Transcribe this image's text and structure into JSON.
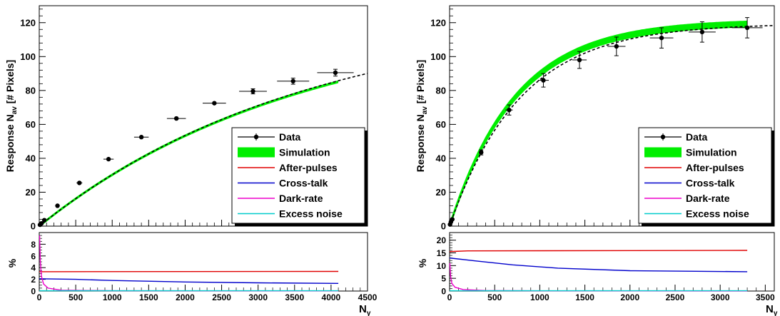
{
  "chart_data": [
    {
      "type": "line",
      "ylabel": "Response N_av [# Pixels]",
      "xlabel": "N_γ",
      "xlim": [
        0,
        4500
      ],
      "ylim": [
        0,
        130
      ],
      "x_ticks": [
        0,
        500,
        1000,
        1500,
        2000,
        2500,
        3000,
        3500,
        4000,
        4500
      ],
      "y_ticks": [
        0,
        20,
        40,
        60,
        80,
        100,
        120
      ],
      "legend_position": "bottom-right",
      "legend": [
        "Data",
        "Simulation",
        "After-pulses",
        "Cross-talk",
        "Dark-rate",
        "Excess noise"
      ],
      "data_points": [
        {
          "x": 10,
          "y": 0.8,
          "xerr": 5,
          "yerr": 0.3
        },
        {
          "x": 30,
          "y": 1.6,
          "xerr": 8,
          "yerr": 0.4
        },
        {
          "x": 70,
          "y": 3.5,
          "xerr": 12,
          "yerr": 0.5
        },
        {
          "x": 250,
          "y": 12,
          "xerr": 25,
          "yerr": 0.6
        },
        {
          "x": 550,
          "y": 25.5,
          "xerr": 40,
          "yerr": 0.8
        },
        {
          "x": 950,
          "y": 39.5,
          "xerr": 70,
          "yerr": 1.0
        },
        {
          "x": 1400,
          "y": 52.5,
          "xerr": 100,
          "yerr": 1.0
        },
        {
          "x": 1880,
          "y": 63.5,
          "xerr": 130,
          "yerr": 1.0
        },
        {
          "x": 2400,
          "y": 72.5,
          "xerr": 160,
          "yerr": 1.2
        },
        {
          "x": 2930,
          "y": 79.5,
          "xerr": 190,
          "yerr": 1.5
        },
        {
          "x": 3480,
          "y": 85.5,
          "xerr": 220,
          "yerr": 1.8
        },
        {
          "x": 4060,
          "y": 90.5,
          "xerr": 250,
          "yerr": 2.0
        }
      ],
      "fit_curve": {
        "Nmax": 128,
        "tau": 3700,
        "x_end": 4500
      },
      "simulation_band": {
        "Nmax": 126,
        "tau": 3640,
        "x_end": 4100,
        "half_width": 0.8
      },
      "residual_panel": {
        "ylabel": "%",
        "ylim": [
          0,
          10
        ],
        "y_ticks": [
          0,
          2,
          4,
          6,
          8
        ],
        "after_pulses": [
          [
            0,
            3.3
          ],
          [
            4100,
            3.35
          ]
        ],
        "cross_talk": [
          [
            0,
            2.1
          ],
          [
            500,
            2.0
          ],
          [
            1000,
            1.8
          ],
          [
            2000,
            1.55
          ],
          [
            3000,
            1.4
          ],
          [
            4100,
            1.3
          ]
        ],
        "dark_rate": [
          [
            5,
            9.5
          ],
          [
            15,
            5.0
          ],
          [
            30,
            2.5
          ],
          [
            60,
            1.2
          ],
          [
            120,
            0.5
          ],
          [
            300,
            0.15
          ],
          [
            1000,
            0.05
          ],
          [
            4100,
            0.02
          ]
        ],
        "excess_noise": [
          [
            0,
            0.05
          ],
          [
            4100,
            0.05
          ]
        ]
      }
    },
    {
      "type": "line",
      "ylabel": "Response N_av [# Pixels]",
      "xlabel": "N_γ",
      "xlim": [
        0,
        3600
      ],
      "ylim": [
        0,
        130
      ],
      "x_ticks": [
        0,
        500,
        1000,
        1500,
        2000,
        2500,
        3000,
        3500
      ],
      "y_ticks": [
        0,
        20,
        40,
        60,
        80,
        100,
        120
      ],
      "legend_position": "bottom-right",
      "legend": [
        "Data",
        "Simulation",
        "After-pulses",
        "Cross-talk",
        "Dark-rate",
        "Excess noise"
      ],
      "data_points": [
        {
          "x": 5,
          "y": 1.0,
          "xerr": 5,
          "yerr": 0.5
        },
        {
          "x": 15,
          "y": 2.5,
          "xerr": 6,
          "yerr": 0.6
        },
        {
          "x": 30,
          "y": 4.0,
          "xerr": 8,
          "yerr": 0.8
        },
        {
          "x": 350,
          "y": 43.5,
          "xerr": 20,
          "yerr": 1.5
        },
        {
          "x": 660,
          "y": 68.5,
          "xerr": 40,
          "yerr": 3.0
        },
        {
          "x": 1040,
          "y": 86,
          "xerr": 60,
          "yerr": 4.0
        },
        {
          "x": 1440,
          "y": 98,
          "xerr": 80,
          "yerr": 5.0
        },
        {
          "x": 1850,
          "y": 106,
          "xerr": 100,
          "yerr": 5.5
        },
        {
          "x": 2350,
          "y": 111,
          "xerr": 130,
          "yerr": 6.0
        },
        {
          "x": 2800,
          "y": 114.5,
          "xerr": 150,
          "yerr": 6.0
        },
        {
          "x": 3300,
          "y": 117,
          "xerr": 170,
          "yerr": 6.0
        }
      ],
      "fit_curve": {
        "Nmax": 119.5,
        "tau": 780,
        "x_end": 3600
      },
      "simulation_band": {
        "Nmax": 120.5,
        "tau": 730,
        "x_end": 3300,
        "half_width": 2.0
      },
      "residual_panel": {
        "ylabel": "%",
        "ylim": [
          0,
          23
        ],
        "y_ticks": [
          0,
          5,
          10,
          15,
          20
        ],
        "after_pulses": [
          [
            0,
            15.5
          ],
          [
            200,
            15.8
          ],
          [
            3300,
            16.0
          ]
        ],
        "cross_talk": [
          [
            0,
            13.0
          ],
          [
            300,
            11.8
          ],
          [
            700,
            10.3
          ],
          [
            1200,
            9.0
          ],
          [
            2000,
            8.0
          ],
          [
            3300,
            7.6
          ]
        ],
        "dark_rate": [
          [
            3,
            11.0
          ],
          [
            10,
            6.0
          ],
          [
            25,
            3.0
          ],
          [
            60,
            1.5
          ],
          [
            150,
            0.6
          ],
          [
            400,
            0.2
          ],
          [
            1000,
            0.08
          ],
          [
            3300,
            0.03
          ]
        ],
        "excess_noise": [
          [
            0,
            0.1
          ],
          [
            3300,
            0.1
          ]
        ]
      }
    }
  ],
  "colors": {
    "data": "#000000",
    "simulation": "#00ee00",
    "after_pulses": "#e00000",
    "cross_talk": "#0000cc",
    "dark_rate": "#ee00cc",
    "excess_noise": "#00cccc"
  }
}
